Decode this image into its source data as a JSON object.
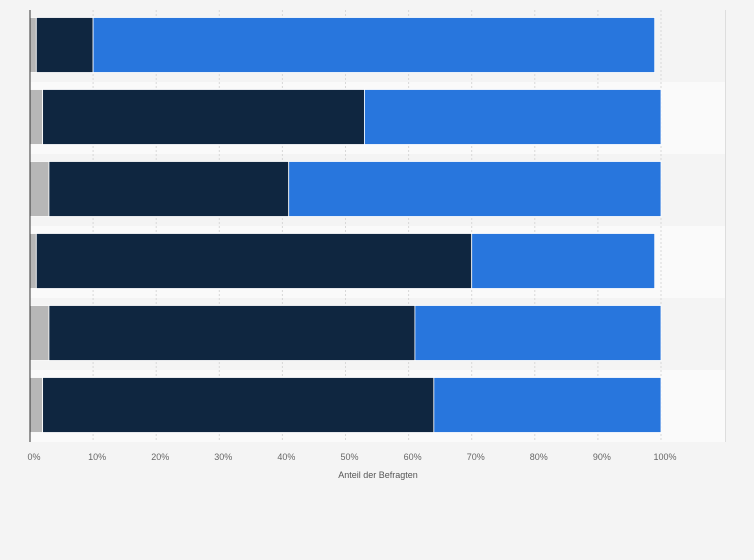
{
  "chart_data": {
    "type": "bar",
    "orientation": "horizontal",
    "stacked": true,
    "categories": [
      "",
      "",
      "",
      "",
      "",
      ""
    ],
    "series": [
      {
        "color": "#b7b7b7",
        "values": [
          1,
          2,
          3,
          1,
          3,
          2
        ]
      },
      {
        "color": "#0f2640",
        "values": [
          9,
          51,
          38,
          69,
          58,
          62
        ]
      },
      {
        "color": "#2876dd",
        "values": [
          89,
          47,
          59,
          29,
          39,
          36
        ]
      }
    ],
    "xticks": [
      "0%",
      "10%",
      "20%",
      "30%",
      "40%",
      "50%",
      "60%",
      "70%",
      "80%",
      "90%",
      "100%"
    ],
    "xlabel": "Anteil der Befragten",
    "xlim": [
      0,
      100
    ],
    "grid": true,
    "legend": "none"
  }
}
